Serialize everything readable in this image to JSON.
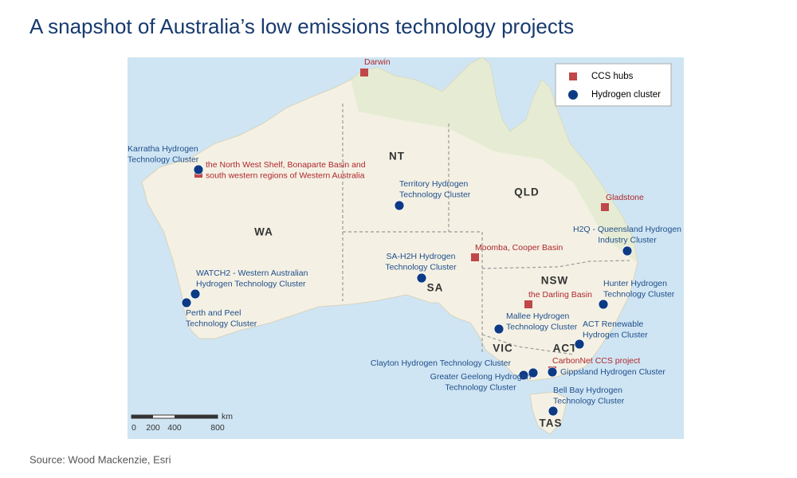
{
  "header": {
    "title": "A snapshot of Australia’s low emissions technology projects"
  },
  "legend": {
    "ccs": "CCS hubs",
    "hydrogen": "Hydrogen cluster"
  },
  "states": [
    "WA",
    "NT",
    "QLD",
    "SA",
    "NSW",
    "VIC",
    "ACT",
    "TAS"
  ],
  "ccs_hubs": [
    {
      "lines": [
        "Darwin"
      ]
    },
    {
      "lines": [
        "the North West Shelf, Bonaparte Basin and",
        "south western regions of Western Australia"
      ]
    },
    {
      "lines": [
        "Gladstone"
      ]
    },
    {
      "lines": [
        "Moomba, Cooper Basin"
      ]
    },
    {
      "lines": [
        "the Darling Basin"
      ]
    },
    {
      "lines": [
        "CarbonNet CCS project"
      ]
    }
  ],
  "hydrogen_clusters": [
    {
      "lines": [
        "Karratha Hydrogen",
        "Technology Cluster"
      ]
    },
    {
      "lines": [
        "Territory Hydrogen",
        "Technology Cluster"
      ]
    },
    {
      "lines": [
        "H2Q - Queensland Hydrogen",
        "Industry Cluster"
      ]
    },
    {
      "lines": [
        "SA-H2H Hydrogen",
        "Technology Cluster"
      ]
    },
    {
      "lines": [
        "WATCH2 - Western Australian",
        "Hydrogen Technology Cluster"
      ]
    },
    {
      "lines": [
        "Perth and Peel",
        "Technology Cluster"
      ]
    },
    {
      "lines": [
        "Hunter Hydrogen",
        "Technology Cluster"
      ]
    },
    {
      "lines": [
        "Mallee Hydrogen",
        "Technology Cluster"
      ]
    },
    {
      "lines": [
        "ACT Renewable",
        "Hydrogen Cluster"
      ]
    },
    {
      "lines": [
        "Clayton Hydrogen Technology Cluster"
      ]
    },
    {
      "lines": [
        "Greater Geelong Hydrogen",
        "Technology Cluster"
      ]
    },
    {
      "lines": [
        "Gippsland Hydrogen Cluster"
      ]
    },
    {
      "lines": [
        "Bell Bay Hydrogen",
        "Technology Cluster"
      ]
    }
  ],
  "scale": {
    "ticks": [
      0,
      200,
      400,
      800
    ],
    "unit": "km"
  },
  "source": "Source: Wood Mackenzie, Esri"
}
